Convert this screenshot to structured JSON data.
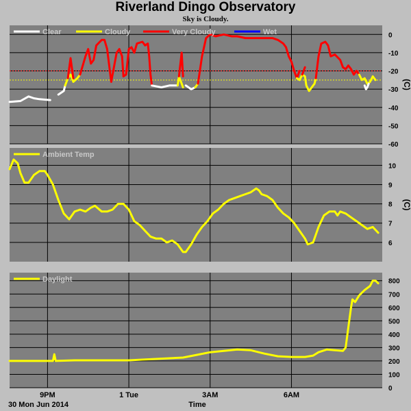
{
  "title": "Riverland Dingo Observatory",
  "subtitle": "Sky is Cloudy.",
  "footer": {
    "date": "30 Mon Jun 2014",
    "xlabel": "Time"
  },
  "x_ticks": [
    {
      "label": "9PM",
      "hour": 21
    },
    {
      "label": "1 Tue",
      "hour": 24
    },
    {
      "label": "3AM",
      "hour": 27
    },
    {
      "label": "6AM",
      "hour": 30
    }
  ],
  "colors": {
    "panel_bg": "#808080",
    "frame_bg": "#c0c0c0",
    "grid": "#000000",
    "clear": "#ffffff",
    "cloudy": "#ffff00",
    "very_cloudy": "#ff0000",
    "wet": "#0000ff",
    "temp": "#ffff00",
    "daylight": "#ffff00"
  },
  "chart_data": [
    {
      "id": "sky",
      "type": "line",
      "ylabel": "(C)",
      "ylim": [
        -60,
        5
      ],
      "yticks": [
        0,
        -10,
        -20,
        -30,
        -40,
        -50,
        -60
      ],
      "thresholds": [
        {
          "value": -20,
          "color": "#ff0000"
        },
        {
          "value": -25,
          "color": "#ffff00"
        }
      ],
      "legend": [
        {
          "name": "Clear",
          "color": "#ffffff"
        },
        {
          "name": "Cloudy",
          "color": "#ffff00"
        },
        {
          "name": "Very Cloudy",
          "color": "#ff0000"
        },
        {
          "name": "Wet",
          "color": "#0000ff"
        }
      ],
      "series": [
        {
          "class": "clear",
          "points": [
            [
              19.6,
              -37
            ],
            [
              20.0,
              -36.5
            ],
            [
              20.3,
              -34
            ],
            [
              20.5,
              -35
            ],
            [
              20.7,
              -35.5
            ],
            [
              21.1,
              -36
            ]
          ]
        },
        {
          "class": "clear",
          "points": [
            [
              21.4,
              -33
            ],
            [
              21.6,
              -31
            ],
            [
              21.65,
              -28
            ]
          ]
        },
        {
          "class": "cloudy",
          "points": [
            [
              21.65,
              -28
            ],
            [
              21.75,
              -24
            ],
            [
              21.85,
              -22
            ],
            [
              21.95,
              -26
            ],
            [
              22.1,
              -24
            ],
            [
              22.2,
              -22
            ]
          ]
        },
        {
          "class": "very_cloudy",
          "points": [
            [
              21.75,
              -24
            ],
            [
              21.85,
              -13
            ],
            [
              21.95,
              -24
            ]
          ]
        },
        {
          "class": "very_cloudy",
          "points": [
            [
              22.2,
              -22
            ],
            [
              22.4,
              -12
            ],
            [
              22.5,
              -8
            ],
            [
              22.6,
              -16
            ],
            [
              22.7,
              -14
            ],
            [
              22.8,
              -6
            ],
            [
              23.0,
              -3
            ],
            [
              23.1,
              -3
            ],
            [
              23.2,
              -8
            ],
            [
              23.3,
              -20
            ],
            [
              23.35,
              -26
            ],
            [
              23.45,
              -18
            ],
            [
              23.55,
              -10
            ],
            [
              23.65,
              -8
            ],
            [
              23.75,
              -12
            ],
            [
              23.8,
              -23
            ],
            [
              23.9,
              -22
            ],
            [
              24.0,
              -8
            ],
            [
              24.1,
              -7
            ],
            [
              24.2,
              -10
            ],
            [
              24.3,
              -5
            ],
            [
              24.5,
              -4
            ],
            [
              24.6,
              -6
            ],
            [
              24.7,
              -5
            ],
            [
              24.75,
              -12
            ],
            [
              24.8,
              -22
            ],
            [
              24.85,
              -28
            ]
          ]
        },
        {
          "class": "clear",
          "points": [
            [
              24.85,
              -28
            ],
            [
              25.2,
              -29
            ],
            [
              25.5,
              -28
            ],
            [
              25.7,
              -28
            ],
            [
              25.8,
              -28
            ]
          ]
        },
        {
          "class": "cloudy",
          "points": [
            [
              25.8,
              -28
            ],
            [
              25.85,
              -23
            ],
            [
              25.9,
              -25
            ],
            [
              26.0,
              -29
            ]
          ]
        },
        {
          "class": "very_cloudy",
          "points": [
            [
              25.85,
              -23
            ],
            [
              25.95,
              -10
            ],
            [
              26.0,
              -23
            ]
          ]
        },
        {
          "class": "clear",
          "points": [
            [
              26.1,
              -28
            ],
            [
              26.3,
              -30
            ],
            [
              26.45,
              -29
            ]
          ]
        },
        {
          "class": "cloudy",
          "points": [
            [
              26.45,
              -29
            ],
            [
              26.55,
              -27
            ]
          ]
        },
        {
          "class": "very_cloudy",
          "points": [
            [
              26.55,
              -27
            ],
            [
              26.7,
              -12
            ],
            [
              26.85,
              -2
            ],
            [
              27.0,
              0
            ],
            [
              27.2,
              -1
            ],
            [
              27.5,
              0
            ],
            [
              27.8,
              -1
            ],
            [
              28.0,
              -1
            ],
            [
              28.3,
              -2
            ],
            [
              28.6,
              -2
            ],
            [
              29.0,
              -2
            ],
            [
              29.3,
              -2
            ],
            [
              29.5,
              -3
            ],
            [
              29.7,
              -5
            ],
            [
              29.8,
              -7
            ],
            [
              29.9,
              -12
            ],
            [
              30.0,
              -15
            ],
            [
              30.1,
              -20
            ],
            [
              30.2,
              -24
            ],
            [
              30.3,
              -20
            ]
          ]
        },
        {
          "class": "cloudy",
          "points": [
            [
              30.2,
              -24
            ],
            [
              30.3,
              -25
            ],
            [
              30.4,
              -22
            ],
            [
              30.5,
              -23
            ],
            [
              30.55,
              -28
            ],
            [
              30.65,
              -31
            ],
            [
              30.75,
              -29
            ],
            [
              30.85,
              -27
            ],
            [
              30.9,
              -24
            ]
          ]
        },
        {
          "class": "very_cloudy",
          "points": [
            [
              30.4,
              -22
            ],
            [
              30.5,
              -18
            ]
          ]
        },
        {
          "class": "very_cloudy",
          "points": [
            [
              30.9,
              -24
            ],
            [
              31.0,
              -12
            ],
            [
              31.1,
              -5
            ],
            [
              31.25,
              -4
            ],
            [
              31.35,
              -6
            ],
            [
              31.45,
              -12
            ],
            [
              31.6,
              -11
            ],
            [
              31.8,
              -14
            ],
            [
              31.9,
              -18
            ],
            [
              32.0,
              -19
            ],
            [
              32.1,
              -17
            ],
            [
              32.2,
              -19
            ],
            [
              32.3,
              -22
            ],
            [
              32.4,
              -20
            ],
            [
              32.5,
              -22
            ]
          ]
        },
        {
          "class": "cloudy",
          "points": [
            [
              32.5,
              -22
            ],
            [
              32.6,
              -25
            ],
            [
              32.7,
              -24
            ],
            [
              32.8,
              -27
            ],
            [
              32.9,
              -26
            ],
            [
              33.0,
              -23
            ],
            [
              33.1,
              -25
            ]
          ]
        },
        {
          "class": "clear",
          "points": [
            [
              32.7,
              -28
            ],
            [
              32.75,
              -30
            ],
            [
              32.8,
              -29
            ],
            [
              32.85,
              -27
            ]
          ]
        }
      ]
    },
    {
      "id": "temp",
      "type": "line",
      "ylabel": "(C)",
      "ylim": [
        5,
        10.9
      ],
      "yticks": [
        10,
        9,
        8,
        7,
        6
      ],
      "legend": [
        {
          "name": "Ambient Temp",
          "color": "#ffff00"
        }
      ],
      "series": [
        {
          "name": "Ambient Temp",
          "points": [
            [
              19.6,
              9.8
            ],
            [
              19.75,
              10.3
            ],
            [
              19.9,
              10.1
            ],
            [
              20.0,
              9.6
            ],
            [
              20.15,
              9.1
            ],
            [
              20.3,
              9.1
            ],
            [
              20.5,
              9.5
            ],
            [
              20.7,
              9.7
            ],
            [
              20.9,
              9.7
            ],
            [
              21.0,
              9.5
            ],
            [
              21.2,
              9.0
            ],
            [
              21.4,
              8.2
            ],
            [
              21.6,
              7.5
            ],
            [
              21.8,
              7.2
            ],
            [
              22.0,
              7.6
            ],
            [
              22.2,
              7.7
            ],
            [
              22.4,
              7.6
            ],
            [
              22.6,
              7.8
            ],
            [
              22.75,
              7.9
            ],
            [
              23.0,
              7.6
            ],
            [
              23.2,
              7.6
            ],
            [
              23.4,
              7.7
            ],
            [
              23.6,
              8.0
            ],
            [
              23.8,
              8.0
            ],
            [
              24.0,
              7.7
            ],
            [
              24.2,
              7.1
            ],
            [
              24.4,
              6.9
            ],
            [
              24.6,
              6.6
            ],
            [
              24.8,
              6.3
            ],
            [
              25.0,
              6.2
            ],
            [
              25.2,
              6.2
            ],
            [
              25.4,
              6.0
            ],
            [
              25.6,
              6.1
            ],
            [
              25.8,
              5.9
            ],
            [
              26.0,
              5.5
            ],
            [
              26.1,
              5.5
            ],
            [
              26.3,
              5.9
            ],
            [
              26.5,
              6.4
            ],
            [
              26.7,
              6.8
            ],
            [
              26.9,
              7.1
            ],
            [
              27.1,
              7.5
            ],
            [
              27.3,
              7.7
            ],
            [
              27.5,
              8.0
            ],
            [
              27.7,
              8.2
            ],
            [
              27.9,
              8.3
            ],
            [
              28.1,
              8.4
            ],
            [
              28.3,
              8.5
            ],
            [
              28.5,
              8.6
            ],
            [
              28.7,
              8.8
            ],
            [
              28.8,
              8.7
            ],
            [
              28.9,
              8.5
            ],
            [
              29.1,
              8.4
            ],
            [
              29.3,
              8.2
            ],
            [
              29.5,
              7.8
            ],
            [
              29.7,
              7.5
            ],
            [
              29.9,
              7.3
            ],
            [
              30.1,
              7.0
            ],
            [
              30.3,
              6.6
            ],
            [
              30.5,
              6.2
            ],
            [
              30.6,
              5.9
            ],
            [
              30.8,
              6.0
            ],
            [
              31.0,
              6.8
            ],
            [
              31.2,
              7.4
            ],
            [
              31.4,
              7.6
            ],
            [
              31.6,
              7.6
            ],
            [
              31.7,
              7.4
            ],
            [
              31.8,
              7.6
            ],
            [
              32.0,
              7.5
            ],
            [
              32.2,
              7.3
            ],
            [
              32.4,
              7.1
            ],
            [
              32.6,
              6.9
            ],
            [
              32.8,
              6.7
            ],
            [
              33.0,
              6.8
            ],
            [
              33.2,
              6.5
            ]
          ]
        }
      ]
    },
    {
      "id": "daylight",
      "type": "line",
      "ylabel": "",
      "ylim": [
        0,
        860
      ],
      "yticks": [
        800,
        700,
        600,
        500,
        400,
        300,
        200,
        100,
        0
      ],
      "legend": [
        {
          "name": "Daylight",
          "color": "#ffff00"
        }
      ],
      "series": [
        {
          "name": "Daylight",
          "points": [
            [
              19.6,
              200
            ],
            [
              20.5,
              200
            ],
            [
              21.2,
              200
            ],
            [
              21.25,
              250
            ],
            [
              21.3,
              200
            ],
            [
              22.0,
              205
            ],
            [
              23.0,
              205
            ],
            [
              24.0,
              205
            ],
            [
              25.0,
              215
            ],
            [
              26.0,
              225
            ],
            [
              26.5,
              245
            ],
            [
              27.0,
              265
            ],
            [
              27.5,
              275
            ],
            [
              28.0,
              285
            ],
            [
              28.5,
              280
            ],
            [
              29.0,
              255
            ],
            [
              29.5,
              235
            ],
            [
              30.0,
              230
            ],
            [
              30.5,
              230
            ],
            [
              30.8,
              240
            ],
            [
              31.0,
              265
            ],
            [
              31.3,
              285
            ],
            [
              31.6,
              280
            ],
            [
              31.9,
              275
            ],
            [
              32.0,
              300
            ],
            [
              32.1,
              450
            ],
            [
              32.2,
              600
            ],
            [
              32.25,
              660
            ],
            [
              32.35,
              640
            ],
            [
              32.5,
              690
            ],
            [
              32.7,
              730
            ],
            [
              32.9,
              760
            ],
            [
              33.0,
              800
            ],
            [
              33.1,
              800
            ],
            [
              33.2,
              780
            ]
          ]
        }
      ]
    }
  ]
}
